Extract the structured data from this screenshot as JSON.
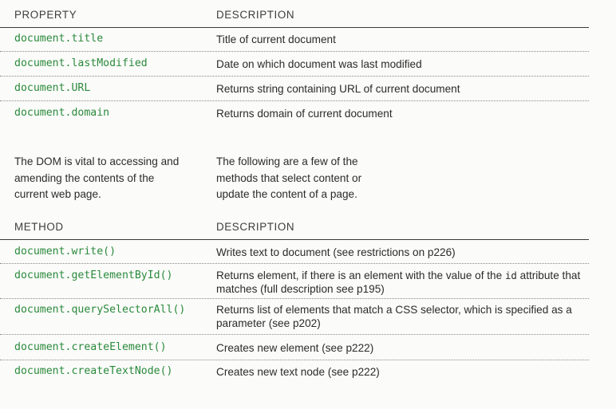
{
  "properties_table": {
    "header_col1": "PROPERTY",
    "header_col2": "DESCRIPTION",
    "rows": [
      {
        "code": "document.title",
        "desc": "Title of current document"
      },
      {
        "code": "document.lastModified",
        "desc": "Date on which document was last modified"
      },
      {
        "code": "document.URL",
        "desc": "Returns string containing URL of current document"
      },
      {
        "code": "document.domain",
        "desc": "Returns domain of current document"
      }
    ]
  },
  "intro": {
    "left": "The DOM is vital to accessing and amending the contents of the current web page.",
    "right": "The following are a few of the methods that select content or update the content of a page."
  },
  "methods_table": {
    "header_col1": "METHOD",
    "header_col2": "DESCRIPTION",
    "rows": [
      {
        "code": "document.write()",
        "desc": "Writes text to document (see restrictions on p226)"
      },
      {
        "code": "document.getElementById()",
        "desc_before": "Returns element, if there is an element with the value of the ",
        "desc_code": "id",
        "desc_after": " attribute that matches (full description see p195)"
      },
      {
        "code": "document.querySelectorAll()",
        "desc": "Returns list of elements that match a CSS selector, which is specified as a parameter (see p202)"
      },
      {
        "code": "document.createElement()",
        "desc": "Creates new element (see p222)"
      },
      {
        "code": "document.createTextNode()",
        "desc": "Creates new text node (see p222)"
      }
    ]
  }
}
